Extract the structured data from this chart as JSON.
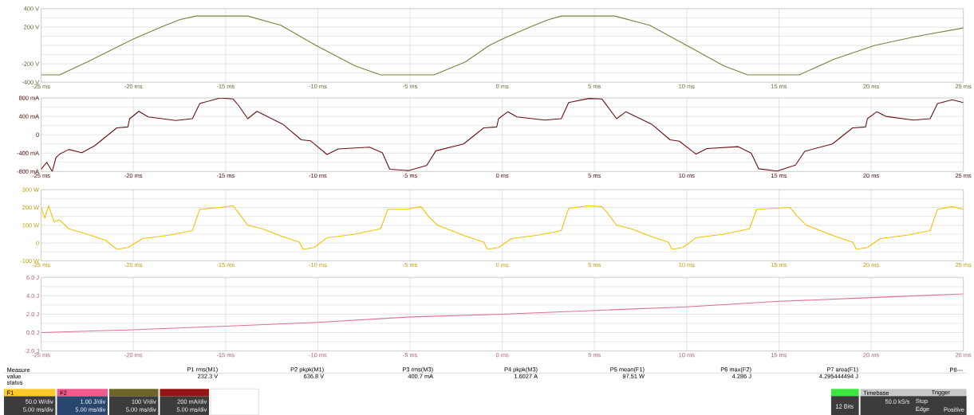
{
  "chart_data": [
    {
      "type": "line",
      "color": "#7f7f3a",
      "grid": true,
      "xlim": [
        -25,
        25
      ],
      "ylim": [
        -400,
        400
      ],
      "xticks": [
        {
          "value": -25,
          "label": "-25 ms"
        },
        {
          "value": -20,
          "label": "-20 ms"
        },
        {
          "value": -15,
          "label": "-15 ms"
        },
        {
          "value": -10,
          "label": "-10 ms"
        },
        {
          "value": -5,
          "label": "-5 ms"
        },
        {
          "value": 0,
          "label": "0 ms"
        },
        {
          "value": 5,
          "label": "5 ms"
        },
        {
          "value": 10,
          "label": "10 ms"
        },
        {
          "value": 15,
          "label": "15 ms"
        },
        {
          "value": 20,
          "label": "20 ms"
        },
        {
          "value": 25,
          "label": "25 ms"
        }
      ],
      "yticks": [
        {
          "value": -400,
          "label": "-400 V"
        },
        {
          "value": -200,
          "label": "-200 V"
        },
        {
          "value": 0,
          "label": null
        },
        {
          "value": 200,
          "label": "200 V"
        },
        {
          "value": 400,
          "label": "400 V"
        }
      ],
      "x": [
        -25,
        -24.0,
        -22.5,
        -20.7,
        -20,
        -18.5,
        -17.5,
        -16.6,
        -13.8,
        -12,
        -10.1,
        -8,
        -6.6,
        -3.7,
        -2,
        -0.7,
        0,
        1.5,
        2.5,
        3.2,
        6.1,
        8,
        10,
        12,
        13.3,
        16.1,
        18,
        20.2,
        22.5,
        25
      ],
      "values": [
        -320,
        -320,
        -180,
        0,
        70,
        200,
        280,
        320,
        320,
        220,
        0,
        -220,
        -320,
        -320,
        -180,
        0,
        70,
        200,
        280,
        320,
        320,
        220,
        0,
        -220,
        -320,
        -320,
        -150,
        0,
        100,
        190
      ]
    },
    {
      "type": "line",
      "color": "#6b0f0f",
      "grid": true,
      "xlim": [
        -25,
        25
      ],
      "ylim": [
        -800,
        800
      ],
      "xticks": [
        {
          "value": -25,
          "label": "-25 ms"
        },
        {
          "value": -20,
          "label": "-20 ms"
        },
        {
          "value": -15,
          "label": "-15 ms"
        },
        {
          "value": -10,
          "label": "-10 ms"
        },
        {
          "value": -5,
          "label": "-5 ms"
        },
        {
          "value": 0,
          "label": "0 ms"
        },
        {
          "value": 5,
          "label": "5 ms"
        },
        {
          "value": 10,
          "label": "10 ms"
        },
        {
          "value": 15,
          "label": "15 ms"
        },
        {
          "value": 20,
          "label": "20 ms"
        },
        {
          "value": 25,
          "label": "25 ms"
        }
      ],
      "yticks": [
        {
          "value": -800,
          "label": "-800 mA"
        },
        {
          "value": -400,
          "label": "-400 mA"
        },
        {
          "value": 0,
          "label": "0"
        },
        {
          "value": 400,
          "label": "400 mA"
        },
        {
          "value": 800,
          "label": "800 mA"
        }
      ],
      "x": [
        -25,
        -24.7,
        -24.4,
        -24.2,
        -24,
        -23.5,
        -22.8,
        -22.1,
        -20.9,
        -20.3,
        -20.2,
        -19.7,
        -19.2,
        -17.7,
        -16.8,
        -16.4,
        -15.3,
        -14.6,
        -14.3,
        -13.8,
        -13.3,
        -11.9,
        -10.9,
        -10.4,
        -9.5,
        -8.9,
        -7.2,
        -6.5,
        -6.1,
        -5.1,
        -4.1,
        -3.6,
        -2.1,
        -1,
        -0.3,
        -0.2,
        0.3,
        0.8,
        2.3,
        3.2,
        3.6,
        4.7,
        5.4,
        5.7,
        6.2,
        6.7,
        8.1,
        9.1,
        9.6,
        10.5,
        11.1,
        12.8,
        13.5,
        13.9,
        14.9,
        15.9,
        16.4,
        17.9,
        19,
        19.7,
        19.8,
        20.3,
        20.8,
        22.3,
        23.2,
        23.6,
        24.4,
        25
      ],
      "values": [
        -750,
        -600,
        -800,
        -500,
        -420,
        -320,
        -390,
        -240,
        150,
        170,
        350,
        510,
        390,
        310,
        350,
        680,
        800,
        780,
        640,
        350,
        510,
        230,
        -110,
        -130,
        -430,
        -310,
        -270,
        -390,
        -750,
        -780,
        -670,
        -350,
        -200,
        150,
        170,
        350,
        500,
        390,
        320,
        350,
        700,
        790,
        780,
        620,
        350,
        500,
        230,
        -110,
        -140,
        -420,
        -300,
        -260,
        -400,
        -740,
        -790,
        -660,
        -360,
        -200,
        150,
        170,
        350,
        500,
        400,
        320,
        350,
        680,
        760,
        700
      ]
    },
    {
      "type": "line",
      "color": "#f2c200",
      "grid": true,
      "xlim": [
        -25,
        25
      ],
      "ylim": [
        -100,
        300
      ],
      "xticks": [
        {
          "value": -25,
          "label": "-25 ms"
        },
        {
          "value": -20,
          "label": "-20 ms"
        },
        {
          "value": -15,
          "label": "-15 ms"
        },
        {
          "value": -10,
          "label": "-10 ms"
        },
        {
          "value": -5,
          "label": "-5 ms"
        },
        {
          "value": 0,
          "label": "0 ms"
        },
        {
          "value": 5,
          "label": "5 ms"
        },
        {
          "value": 10,
          "label": "10 ms"
        },
        {
          "value": 15,
          "label": "15 ms"
        },
        {
          "value": 20,
          "label": "20 ms"
        },
        {
          "value": 25,
          "label": "25 ms"
        }
      ],
      "yticks": [
        {
          "value": -100,
          "label": "-100 W"
        },
        {
          "value": 0,
          "label": "0"
        },
        {
          "value": 100,
          "label": "100 W"
        },
        {
          "value": 200,
          "label": "200 W"
        },
        {
          "value": 300,
          "label": "300 W"
        }
      ],
      "x": [
        -25,
        -24.8,
        -24.6,
        -24.3,
        -24,
        -23.5,
        -22.5,
        -21.5,
        -20.9,
        -20.3,
        -19.5,
        -18,
        -16.8,
        -16.4,
        -15.3,
        -14.6,
        -14.3,
        -13.8,
        -13,
        -12,
        -11,
        -10.8,
        -10.2,
        -9.5,
        -8,
        -6.6,
        -6.2,
        -5.2,
        -4.4,
        -4,
        -3.5,
        -2,
        -1,
        -0.8,
        -0.2,
        0.5,
        2,
        3.2,
        3.6,
        4.7,
        5.4,
        5.7,
        6.2,
        7,
        8,
        9,
        9.2,
        9.8,
        10.5,
        12,
        13.4,
        13.8,
        14.8,
        15.6,
        16,
        16.5,
        18,
        19,
        19.2,
        19.8,
        20.5,
        22,
        23.2,
        23.6,
        24.4,
        25
      ],
      "values": [
        200,
        140,
        210,
        120,
        130,
        80,
        50,
        15,
        -35,
        -25,
        25,
        45,
        70,
        190,
        200,
        210,
        170,
        100,
        80,
        40,
        5,
        -35,
        -25,
        30,
        50,
        80,
        190,
        190,
        205,
        150,
        100,
        40,
        5,
        -35,
        -25,
        25,
        45,
        70,
        195,
        210,
        205,
        170,
        100,
        80,
        40,
        5,
        -35,
        -25,
        30,
        50,
        80,
        190,
        195,
        200,
        150,
        100,
        40,
        5,
        -35,
        -25,
        25,
        45,
        70,
        190,
        205,
        190
      ]
    },
    {
      "type": "line",
      "color": "#e0708c",
      "grid": true,
      "xlim": [
        -25,
        25
      ],
      "ylim": [
        -2,
        6
      ],
      "xticks": [
        {
          "value": -25,
          "label": "-25 ms"
        },
        {
          "value": -20,
          "label": "-20 ms"
        },
        {
          "value": -15,
          "label": "-15 ms"
        },
        {
          "value": -10,
          "label": "-10 ms"
        },
        {
          "value": -5,
          "label": "-5 ms"
        },
        {
          "value": 0,
          "label": "0 ms"
        },
        {
          "value": 5,
          "label": "5 ms"
        },
        {
          "value": 10,
          "label": "10 ms"
        },
        {
          "value": 15,
          "label": "15 ms"
        },
        {
          "value": 20,
          "label": "20 ms"
        },
        {
          "value": 25,
          "label": "25 ms"
        }
      ],
      "yticks": [
        {
          "value": -2,
          "label": "-2.0 J"
        },
        {
          "value": 0,
          "label": "0.0 J"
        },
        {
          "value": 2,
          "label": "2.0 J"
        },
        {
          "value": 4,
          "label": "4.0 J"
        },
        {
          "value": 6,
          "label": "6.0 J"
        }
      ],
      "x": [
        -25,
        -20,
        -15,
        -10,
        -5,
        0,
        5,
        10,
        15,
        20,
        25
      ],
      "values": [
        0,
        0.3,
        0.7,
        1.1,
        1.7,
        2.0,
        2.4,
        2.8,
        3.4,
        3.8,
        4.2
      ],
      "annotations": [
        "Measure",
        "value",
        "status",
        "P1 rms(M1)",
        "P2 pkpk(M1)",
        "P3 rms(M3)",
        "P4 pkpk(M3)",
        "P5 mean(F1)",
        "P6 max(F2)",
        "P7 area(F1)",
        "P8---",
        "232.3 V",
        "636.8 V",
        "400.7 mA",
        "1.6027 A",
        "97.51 W",
        "4.286 J",
        "4.295444494 J",
        "F1",
        "50.0 W/div",
        "5.00 ms/div",
        "F2",
        "1.00 J/div",
        "5.00 ms/div",
        "100 V/div",
        "5.00 ms/div",
        "200 mA/div",
        "5.00 ms/div",
        "12 Bits",
        "Timebase",
        "Trigger",
        "50.0 kS/s",
        "Stop",
        "Edge",
        "Positive"
      ]
    }
  ]
}
